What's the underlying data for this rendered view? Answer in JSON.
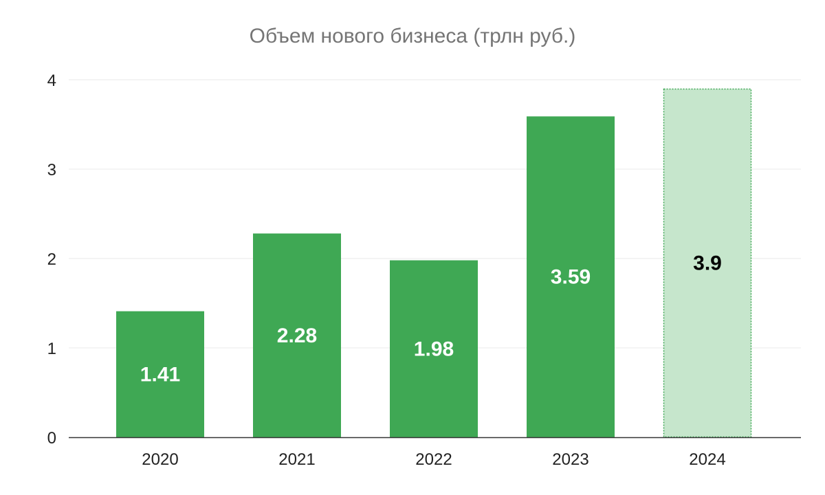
{
  "chart_data": {
    "type": "bar",
    "title": "Объем нового бизнеса (трлн руб.)",
    "xlabel": "",
    "ylabel": "",
    "categories": [
      "2020",
      "2021",
      "2022",
      "2023",
      "2024"
    ],
    "values": [
      1.41,
      2.28,
      1.98,
      3.59,
      3.9
    ],
    "data_labels": [
      "1.41",
      "2.28",
      "1.98",
      "3.59",
      "3.9"
    ],
    "highlighted": [
      false,
      false,
      false,
      false,
      true
    ],
    "ylim": [
      0,
      4
    ],
    "yticks": [
      "0",
      "1",
      "2",
      "3",
      "4"
    ],
    "grid": true,
    "legend": "none",
    "colors": {
      "bar": "#3fa854",
      "bar_highlight_fill": "#c6e6cc",
      "bar_highlight_border": "#3fa854",
      "label_on_bar": "#ffffff",
      "label_on_highlight": "#000000",
      "gridline": "#e8e8e8",
      "axis": "#333333",
      "title": "#757575"
    }
  }
}
